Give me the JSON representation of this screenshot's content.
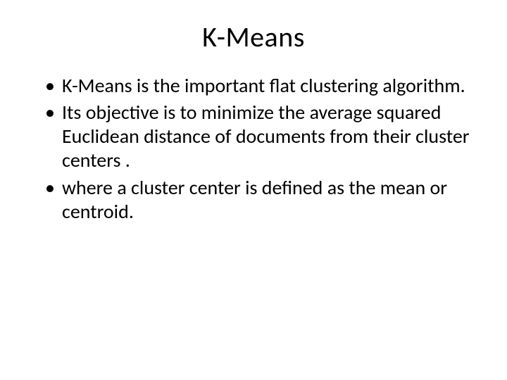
{
  "title": "K-Means",
  "bullets": [
    "K-Means is the important flat clustering algorithm.",
    " Its objective is to minimize the average squared Euclidean distance of documents from their cluster centers .",
    "where a cluster center is defined as the mean or centroid."
  ],
  "colors": {
    "background": "#ffffff",
    "text": "#000000"
  },
  "typography": {
    "title_fontsize": 40,
    "body_fontsize": 28,
    "font_family": "Calibri"
  }
}
